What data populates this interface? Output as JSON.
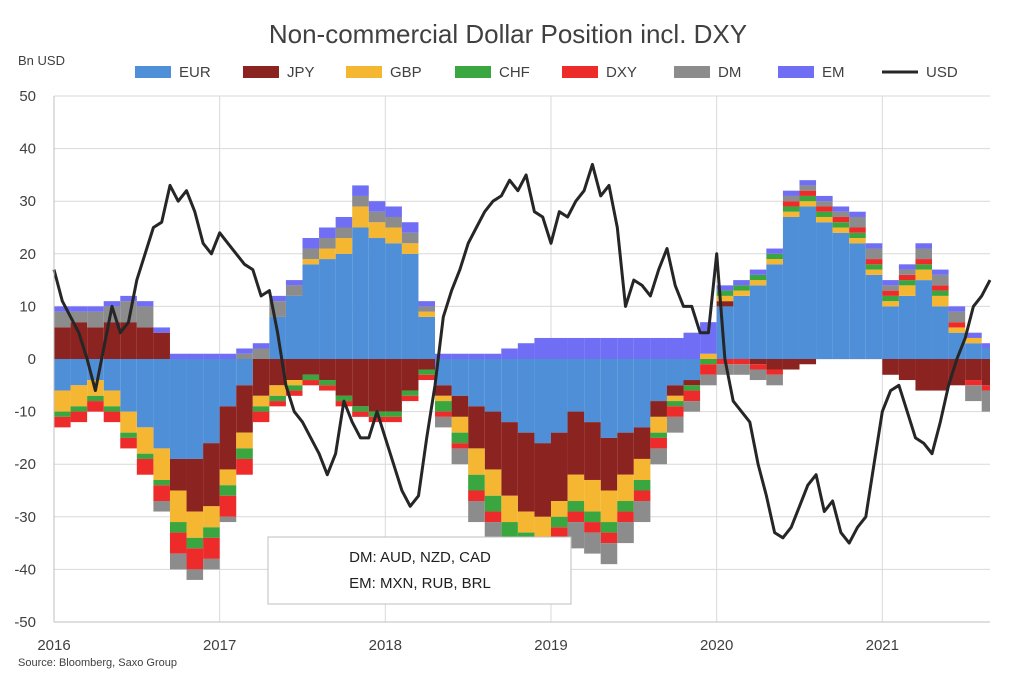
{
  "chart_data": {
    "type": "area",
    "title": "Non-commercial Dollar Position incl. DXY",
    "ylabel": "Bn USD",
    "ylim": [
      -50,
      50
    ],
    "yticks": [
      50,
      40,
      30,
      20,
      10,
      0,
      -10,
      -20,
      -30,
      -40,
      -50
    ],
    "xlim": [
      2016.0,
      2021.65
    ],
    "xticks": [
      "2016",
      "2017",
      "2018",
      "2019",
      "2020",
      "2021"
    ],
    "grid": true,
    "legend_position": "top",
    "source": "Source: Bloomberg, Saxo Group",
    "note_lines": [
      "DM: AUD, NZD, CAD",
      "EM: MXN, RUB, BRL"
    ],
    "x": [
      2016.0,
      2016.1,
      2016.2,
      2016.3,
      2016.4,
      2016.5,
      2016.6,
      2016.7,
      2016.8,
      2016.9,
      2017.0,
      2017.1,
      2017.2,
      2017.3,
      2017.4,
      2017.5,
      2017.6,
      2017.7,
      2017.8,
      2017.9,
      2018.0,
      2018.1,
      2018.2,
      2018.3,
      2018.4,
      2018.5,
      2018.6,
      2018.7,
      2018.8,
      2018.9,
      2019.0,
      2019.1,
      2019.2,
      2019.3,
      2019.4,
      2019.5,
      2019.6,
      2019.7,
      2019.8,
      2019.9,
      2020.0,
      2020.1,
      2020.2,
      2020.3,
      2020.4,
      2020.5,
      2020.6,
      2020.7,
      2020.8,
      2020.9,
      2021.0,
      2021.1,
      2021.2,
      2021.3,
      2021.4,
      2021.5,
      2021.6,
      2021.65
    ],
    "series": [
      {
        "name": "EUR",
        "color": "#4f8fd8",
        "values": [
          -6,
          -5,
          -4,
          -6,
          -10,
          -13,
          -17,
          -19,
          -19,
          -16,
          -9,
          -5,
          0,
          8,
          12,
          18,
          19,
          20,
          25,
          23,
          22,
          20,
          8,
          -5,
          -7,
          -9,
          -10,
          -12,
          -14,
          -16,
          -14,
          -10,
          -12,
          -15,
          -14,
          -13,
          -8,
          -5,
          -4,
          0,
          10,
          12,
          14,
          18,
          27,
          29,
          26,
          24,
          22,
          16,
          10,
          12,
          15,
          10,
          5,
          3,
          2,
          1
        ]
      },
      {
        "name": "JPY",
        "color": "#8b2320",
        "values": [
          6,
          7,
          6,
          7,
          7,
          6,
          5,
          -6,
          -10,
          -12,
          -12,
          -9,
          -7,
          -5,
          -4,
          -3,
          -4,
          -7,
          -9,
          -10,
          -10,
          -6,
          -2,
          -2,
          -4,
          -8,
          -11,
          -14,
          -15,
          -14,
          -13,
          -12,
          -11,
          -10,
          -8,
          -6,
          -3,
          -2,
          -1,
          0,
          1,
          0,
          -1,
          -2,
          -2,
          -1,
          0,
          0,
          0,
          0,
          -3,
          -4,
          -6,
          -6,
          -5,
          -4,
          -5,
          -6
        ]
      },
      {
        "name": "GBP",
        "color": "#f5b732",
        "values": [
          -4,
          -4,
          -3,
          -3,
          -4,
          -5,
          -6,
          -6,
          -5,
          -4,
          -3,
          -3,
          -2,
          -2,
          -1,
          1,
          2,
          3,
          4,
          3,
          3,
          2,
          1,
          -1,
          -3,
          -5,
          -5,
          -5,
          -4,
          -4,
          -3,
          -5,
          -6,
          -6,
          -5,
          -4,
          -3,
          -1,
          0,
          1,
          1,
          1,
          1,
          1,
          1,
          1,
          1,
          1,
          1,
          1,
          1,
          2,
          2,
          2,
          1,
          1,
          0,
          -1
        ]
      },
      {
        "name": "CHF",
        "color": "#3aa63f",
        "values": [
          -1,
          -1,
          -1,
          -1,
          -1,
          -1,
          -1,
          -2,
          -2,
          -2,
          -2,
          -2,
          -1,
          -1,
          -1,
          -1,
          -1,
          -1,
          -1,
          -1,
          -1,
          -1,
          -1,
          -2,
          -2,
          -3,
          -3,
          -3,
          -3,
          -3,
          -2,
          -2,
          -2,
          -2,
          -2,
          -2,
          -1,
          -1,
          -1,
          -1,
          1,
          1,
          1,
          1,
          1,
          1,
          1,
          1,
          1,
          1,
          1,
          1,
          1,
          1,
          0,
          0,
          0,
          0
        ]
      },
      {
        "name": "DXY",
        "color": "#ee2b2b",
        "values": [
          -2,
          -2,
          -2,
          -2,
          -2,
          -3,
          -3,
          -4,
          -4,
          -4,
          -4,
          -3,
          -2,
          -1,
          -1,
          -1,
          -1,
          -1,
          -1,
          -1,
          -1,
          -1,
          -1,
          -1,
          -1,
          -2,
          -2,
          -2,
          -2,
          -2,
          -2,
          -2,
          -2,
          -2,
          -2,
          -2,
          -2,
          -2,
          -2,
          -2,
          -1,
          -1,
          -1,
          -1,
          1,
          1,
          1,
          1,
          1,
          1,
          1,
          1,
          1,
          1,
          1,
          -1,
          -1,
          -1
        ]
      },
      {
        "name": "DM",
        "color": "#8c8c8c",
        "values": [
          3,
          2,
          3,
          3,
          4,
          4,
          -2,
          -3,
          -2,
          -2,
          -1,
          1,
          2,
          3,
          2,
          2,
          2,
          2,
          2,
          2,
          2,
          2,
          1,
          -2,
          -3,
          -4,
          -4,
          -4,
          -4,
          -4,
          -5,
          -5,
          -4,
          -4,
          -4,
          -4,
          -3,
          -3,
          -2,
          -2,
          -2,
          -2,
          -2,
          -2,
          1,
          1,
          1,
          1,
          2,
          2,
          1,
          1,
          2,
          2,
          2,
          -3,
          -4,
          -4
        ]
      },
      {
        "name": "EM",
        "color": "#6f6ef5",
        "values": [
          1,
          1,
          1,
          1,
          1,
          1,
          1,
          1,
          1,
          1,
          1,
          1,
          1,
          1,
          1,
          2,
          2,
          2,
          2,
          2,
          2,
          2,
          1,
          1,
          1,
          1,
          1,
          2,
          3,
          4,
          4,
          4,
          4,
          4,
          4,
          4,
          4,
          4,
          5,
          6,
          1,
          1,
          1,
          1,
          1,
          1,
          1,
          1,
          1,
          1,
          1,
          1,
          1,
          1,
          1,
          1,
          1,
          1
        ]
      }
    ],
    "usd": {
      "name": "USD",
      "color": "#262626",
      "x": [
        2016.0,
        2016.05,
        2016.1,
        2016.15,
        2016.2,
        2016.25,
        2016.3,
        2016.35,
        2016.4,
        2016.45,
        2016.5,
        2016.55,
        2016.6,
        2016.65,
        2016.7,
        2016.75,
        2016.8,
        2016.85,
        2016.9,
        2016.95,
        2017.0,
        2017.05,
        2017.1,
        2017.15,
        2017.2,
        2017.25,
        2017.3,
        2017.35,
        2017.4,
        2017.45,
        2017.5,
        2017.55,
        2017.6,
        2017.65,
        2017.7,
        2017.75,
        2017.8,
        2017.85,
        2017.9,
        2017.95,
        2018.0,
        2018.05,
        2018.1,
        2018.15,
        2018.2,
        2018.25,
        2018.3,
        2018.35,
        2018.4,
        2018.45,
        2018.5,
        2018.55,
        2018.6,
        2018.65,
        2018.7,
        2018.75,
        2018.8,
        2018.85,
        2018.9,
        2018.95,
        2019.0,
        2019.05,
        2019.1,
        2019.15,
        2019.2,
        2019.25,
        2019.3,
        2019.35,
        2019.4,
        2019.45,
        2019.5,
        2019.55,
        2019.6,
        2019.65,
        2019.7,
        2019.75,
        2019.8,
        2019.85,
        2019.9,
        2019.95,
        2020.0,
        2020.05,
        2020.1,
        2020.15,
        2020.2,
        2020.25,
        2020.3,
        2020.35,
        2020.4,
        2020.45,
        2020.5,
        2020.55,
        2020.6,
        2020.65,
        2020.7,
        2020.75,
        2020.8,
        2020.85,
        2020.9,
        2020.95,
        2021.0,
        2021.05,
        2021.1,
        2021.15,
        2021.2,
        2021.25,
        2021.3,
        2021.35,
        2021.4,
        2021.45,
        2021.5,
        2021.55,
        2021.6,
        2021.65
      ],
      "values": [
        17,
        11,
        8,
        5,
        0,
        -6,
        2,
        10,
        5,
        7,
        15,
        20,
        25,
        26,
        33,
        30,
        32,
        28,
        22,
        20,
        24,
        22,
        20,
        18,
        17,
        12,
        13,
        5,
        -5,
        -10,
        -12,
        -15,
        -18,
        -22,
        -18,
        -8,
        -12,
        -15,
        -15,
        -10,
        -15,
        -20,
        -25,
        -28,
        -26,
        -15,
        -5,
        8,
        13,
        17,
        22,
        25,
        28,
        30,
        31,
        34,
        32,
        35,
        28,
        27,
        22,
        28,
        27,
        30,
        32,
        37,
        31,
        33,
        25,
        10,
        15,
        14,
        12,
        17,
        21,
        14,
        10,
        10,
        5,
        5,
        20,
        0,
        -8,
        -10,
        -12,
        -20,
        -26,
        -33,
        -34,
        -32,
        -28,
        -24,
        -22,
        -29,
        -27,
        -33,
        -35,
        -32,
        -30,
        -20,
        -10,
        -6,
        -5,
        -10,
        -15,
        -16,
        -18,
        -12,
        -5,
        0,
        4,
        10,
        12,
        15
      ]
    }
  }
}
